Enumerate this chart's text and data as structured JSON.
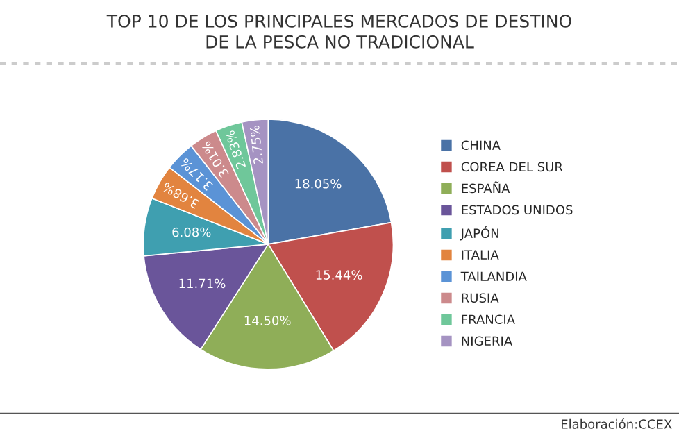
{
  "chart_data": {
    "type": "pie",
    "title": "TOP 10 DE LOS PRINCIPALES MERCADOS DE DESTINO\nDE LA PESCA NO TRADICIONAL",
    "categories": [
      "CHINA",
      "COREA DEL SUR",
      "ESPAÑA",
      "ESTADOS UNIDOS",
      "JAPÓN",
      "ITALIA",
      "TAILANDIA",
      "RUSIA",
      "FRANCIA",
      "NIGERIA"
    ],
    "values": [
      18.05,
      15.44,
      14.5,
      11.71,
      6.08,
      3.68,
      3.17,
      3.01,
      2.83,
      2.75
    ],
    "value_labels": [
      "18.05%",
      "15.44%",
      "14.50%",
      "11.71%",
      "6.08%",
      "3.68%",
      "3.17%",
      "3.01%",
      "2.83%",
      "2.75%"
    ],
    "colors": [
      "#4a72a6",
      "#c0504d",
      "#8fae58",
      "#6a559a",
      "#3f9fb0",
      "#e2843f",
      "#5b93d6",
      "#cc8a8c",
      "#6fc79a",
      "#a593c2"
    ],
    "legend": "right",
    "annotations": [
      "Elaboración:CCEX"
    ]
  }
}
